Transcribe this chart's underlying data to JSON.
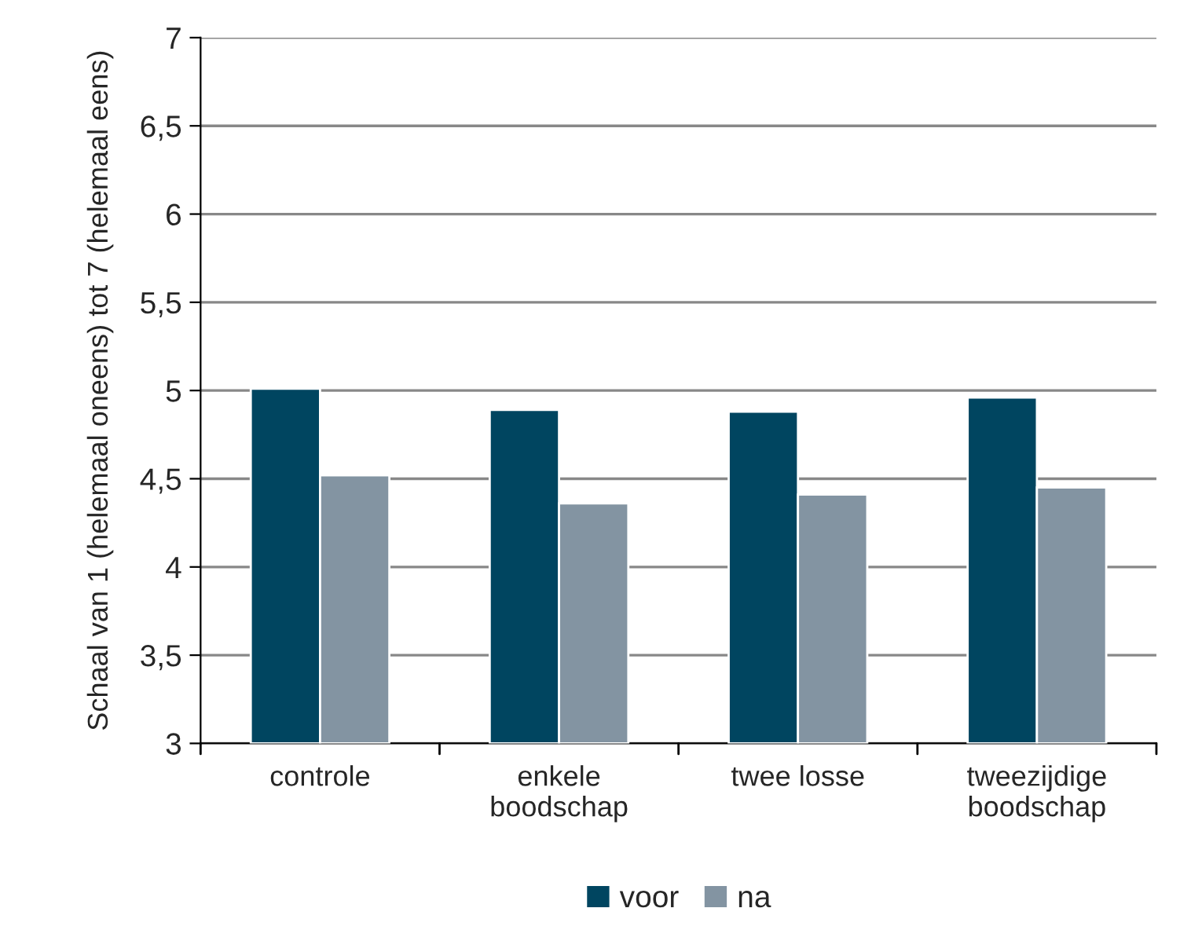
{
  "chart_data": {
    "type": "bar",
    "ylabel": "Schaal van 1 (helemaal oneens) tot 7 (helemaal eens)",
    "categories": [
      "controle",
      "enkele\nboodschap",
      "twee losse",
      "tweezijdige\nboodschap"
    ],
    "series": [
      {
        "name": "voor",
        "color": "#004560",
        "values": [
          5.01,
          4.89,
          4.88,
          4.96
        ]
      },
      {
        "name": "na",
        "color": "#8394a2",
        "values": [
          4.52,
          4.36,
          4.41,
          4.45
        ]
      }
    ],
    "ylim": [
      3,
      7
    ],
    "yticks": [
      {
        "value": 3,
        "label": "3"
      },
      {
        "value": 3.5,
        "label": "3,5"
      },
      {
        "value": 4,
        "label": "4"
      },
      {
        "value": 4.5,
        "label": "4,5"
      },
      {
        "value": 5,
        "label": "5"
      },
      {
        "value": 5.5,
        "label": "5,5"
      },
      {
        "value": 6,
        "label": "6"
      },
      {
        "value": 6.5,
        "label": "6,5"
      },
      {
        "value": 7,
        "label": "7"
      }
    ],
    "grid": "y",
    "legend": "bottom"
  }
}
